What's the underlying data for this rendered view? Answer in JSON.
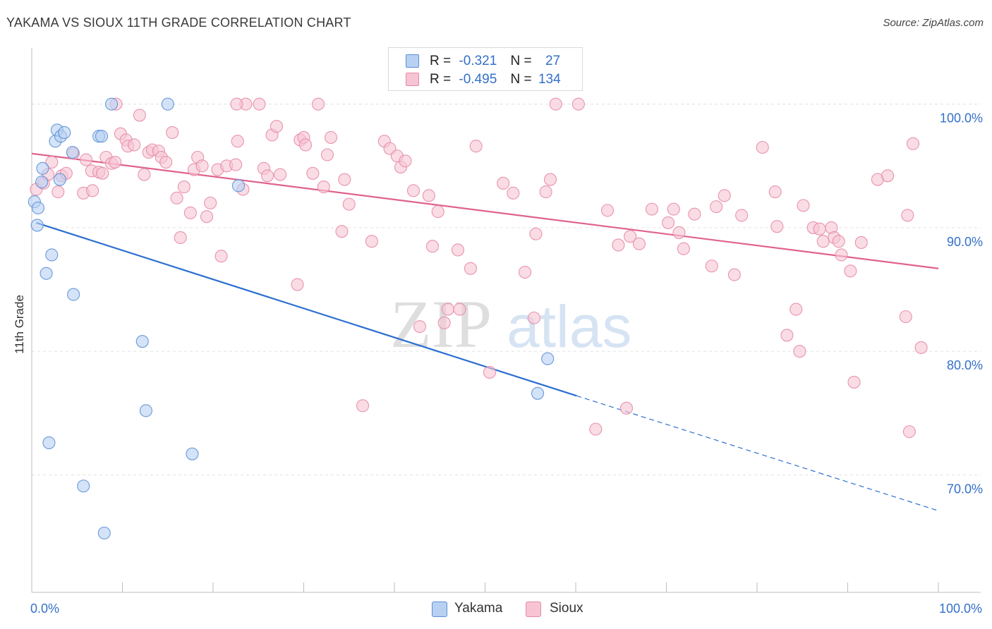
{
  "title": "YAKAMA VS SIOUX 11TH GRADE CORRELATION CHART",
  "source": "Source: ZipAtlas.com",
  "watermark": {
    "zip": "ZIP",
    "atlas": "atlas"
  },
  "legend": {
    "r_label": "R =",
    "n_label": "N =",
    "rows": [
      {
        "name": "Yakama",
        "r": "-0.321",
        "n": "27"
      },
      {
        "name": "Sioux",
        "r": "-0.495",
        "n": "134"
      }
    ]
  },
  "colors": {
    "yakama_fill": "#b8d1f2",
    "yakama_stroke": "#5b8fd6",
    "yakama_line": "#2c6fd1",
    "sioux_fill": "#f7c4d4",
    "sioux_stroke": "#e58aa6",
    "sioux_line": "#e0628c",
    "axis_label": "#3470c8",
    "grid": "#e3e3e3"
  },
  "chart_data": {
    "type": "scatter",
    "xlabel": "",
    "ylabel": "11th Grade",
    "xlim": [
      0,
      100
    ],
    "ylim": [
      60.5,
      105
    ],
    "x_tick_labels": [
      {
        "value": 0,
        "label": "0.0%"
      },
      {
        "value": 100,
        "label": "100.0%"
      }
    ],
    "y_tick_labels": [
      {
        "value": 100,
        "label": "100.0%"
      },
      {
        "value": 90,
        "label": "90.0%"
      },
      {
        "value": 80,
        "label": "80.0%"
      },
      {
        "value": 70,
        "label": "70.0%"
      }
    ],
    "grid": true,
    "legend_position": "top-center",
    "series": [
      {
        "name": "Yakama",
        "points": [
          [
            0.3,
            92.1
          ],
          [
            0.7,
            91.6
          ],
          [
            0.6,
            90.2
          ],
          [
            1.2,
            94.8
          ],
          [
            1.1,
            93.7
          ],
          [
            2.2,
            87.8
          ],
          [
            1.6,
            86.3
          ],
          [
            2.6,
            97.0
          ],
          [
            2.8,
            97.9
          ],
          [
            3.2,
            97.4
          ],
          [
            3.6,
            97.7
          ],
          [
            3.1,
            93.9
          ],
          [
            4.5,
            96.1
          ],
          [
            4.6,
            84.6
          ],
          [
            7.4,
            97.4
          ],
          [
            7.7,
            97.4
          ],
          [
            8.8,
            100.0
          ],
          [
            12.2,
            80.8
          ],
          [
            12.6,
            75.2
          ],
          [
            15.0,
            100.0
          ],
          [
            22.8,
            93.4
          ],
          [
            1.9,
            72.6
          ],
          [
            5.7,
            69.1
          ],
          [
            8.0,
            65.3
          ],
          [
            17.7,
            71.7
          ],
          [
            55.8,
            76.6
          ],
          [
            56.9,
            79.4
          ]
        ],
        "trend": {
          "x": [
            0.5,
            60.1
          ],
          "y": [
            90.4,
            76.4
          ],
          "dashed_to": [
            100,
            67.1
          ]
        }
      },
      {
        "name": "Sioux",
        "points": [
          [
            0.5,
            93.1
          ],
          [
            1.3,
            93.6
          ],
          [
            1.8,
            94.3
          ],
          [
            2.2,
            95.3
          ],
          [
            2.9,
            92.9
          ],
          [
            3.3,
            94.2
          ],
          [
            3.8,
            94.4
          ],
          [
            4.6,
            96.0
          ],
          [
            5.7,
            92.8
          ],
          [
            6.0,
            95.5
          ],
          [
            6.6,
            94.6
          ],
          [
            6.7,
            93.0
          ],
          [
            7.4,
            94.5
          ],
          [
            7.8,
            94.4
          ],
          [
            8.2,
            95.7
          ],
          [
            8.8,
            95.2
          ],
          [
            9.2,
            95.3
          ],
          [
            9.8,
            97.6
          ],
          [
            10.4,
            97.1
          ],
          [
            10.6,
            96.6
          ],
          [
            11.3,
            96.7
          ],
          [
            11.9,
            99.1
          ],
          [
            12.4,
            94.3
          ],
          [
            12.9,
            96.1
          ],
          [
            13.3,
            96.3
          ],
          [
            14.0,
            96.2
          ],
          [
            14.3,
            95.7
          ],
          [
            14.8,
            95.3
          ],
          [
            15.5,
            97.7
          ],
          [
            16.0,
            92.4
          ],
          [
            16.4,
            89.2
          ],
          [
            16.8,
            93.3
          ],
          [
            17.5,
            91.2
          ],
          [
            17.9,
            94.7
          ],
          [
            18.3,
            95.7
          ],
          [
            18.8,
            95.0
          ],
          [
            19.3,
            90.9
          ],
          [
            19.7,
            92.0
          ],
          [
            20.5,
            94.7
          ],
          [
            20.9,
            87.7
          ],
          [
            21.5,
            95.0
          ],
          [
            22.5,
            95.1
          ],
          [
            22.7,
            97.0
          ],
          [
            23.3,
            93.1
          ],
          [
            23.6,
            100.0
          ],
          [
            25.1,
            100.0
          ],
          [
            25.6,
            94.8
          ],
          [
            26.0,
            94.2
          ],
          [
            26.5,
            97.5
          ],
          [
            27.0,
            98.2
          ],
          [
            27.4,
            94.3
          ],
          [
            29.3,
            85.4
          ],
          [
            29.6,
            97.1
          ],
          [
            30.0,
            97.3
          ],
          [
            31.0,
            94.4
          ],
          [
            31.6,
            100.0
          ],
          [
            32.2,
            93.3
          ],
          [
            32.6,
            95.9
          ],
          [
            33.0,
            97.3
          ],
          [
            34.2,
            89.7
          ],
          [
            34.5,
            93.9
          ],
          [
            35.0,
            91.9
          ],
          [
            37.5,
            88.9
          ],
          [
            38.9,
            97.0
          ],
          [
            39.5,
            96.4
          ],
          [
            40.3,
            95.8
          ],
          [
            40.7,
            94.9
          ],
          [
            41.2,
            95.4
          ],
          [
            42.1,
            93.0
          ],
          [
            43.8,
            92.6
          ],
          [
            44.2,
            88.5
          ],
          [
            44.8,
            91.3
          ],
          [
            45.5,
            82.3
          ],
          [
            45.9,
            83.4
          ],
          [
            47.0,
            88.2
          ],
          [
            48.4,
            86.7
          ],
          [
            52.0,
            93.6
          ],
          [
            53.1,
            92.8
          ],
          [
            54.4,
            86.4
          ],
          [
            55.6,
            89.5
          ],
          [
            56.7,
            92.9
          ],
          [
            57.2,
            93.9
          ],
          [
            57.8,
            100.0
          ],
          [
            60.3,
            100.0
          ],
          [
            63.5,
            91.4
          ],
          [
            64.7,
            88.6
          ],
          [
            66.0,
            89.3
          ],
          [
            67.0,
            88.7
          ],
          [
            68.4,
            91.5
          ],
          [
            70.2,
            90.4
          ],
          [
            70.8,
            91.5
          ],
          [
            71.4,
            89.6
          ],
          [
            71.9,
            88.3
          ],
          [
            73.1,
            91.1
          ],
          [
            75.0,
            86.9
          ],
          [
            75.5,
            91.7
          ],
          [
            76.4,
            92.6
          ],
          [
            77.5,
            86.2
          ],
          [
            78.3,
            91.0
          ],
          [
            80.6,
            96.5
          ],
          [
            82.0,
            92.9
          ],
          [
            82.2,
            90.1
          ],
          [
            83.3,
            81.3
          ],
          [
            84.3,
            83.4
          ],
          [
            84.7,
            80.0
          ],
          [
            85.1,
            91.8
          ],
          [
            86.2,
            90.0
          ],
          [
            86.9,
            89.9
          ],
          [
            87.3,
            88.9
          ],
          [
            88.2,
            90.0
          ],
          [
            88.5,
            89.2
          ],
          [
            89.0,
            88.9
          ],
          [
            89.3,
            87.8
          ],
          [
            90.3,
            86.5
          ],
          [
            91.5,
            88.8
          ],
          [
            93.3,
            93.9
          ],
          [
            94.4,
            94.2
          ],
          [
            96.6,
            91.0
          ],
          [
            97.2,
            96.8
          ],
          [
            98.1,
            80.3
          ],
          [
            96.4,
            82.8
          ],
          [
            90.7,
            77.5
          ],
          [
            96.8,
            73.5
          ],
          [
            65.6,
            75.4
          ],
          [
            62.2,
            73.7
          ],
          [
            55.4,
            82.7
          ],
          [
            50.5,
            78.3
          ],
          [
            47.2,
            83.4
          ],
          [
            42.8,
            82.0
          ],
          [
            36.5,
            75.6
          ],
          [
            30.2,
            96.7
          ],
          [
            9.3,
            100.0
          ],
          [
            22.6,
            100.0
          ],
          [
            49.0,
            96.6
          ]
        ],
        "trend": {
          "x": [
            0,
            100
          ],
          "y": [
            96.0,
            86.7
          ]
        }
      }
    ]
  }
}
